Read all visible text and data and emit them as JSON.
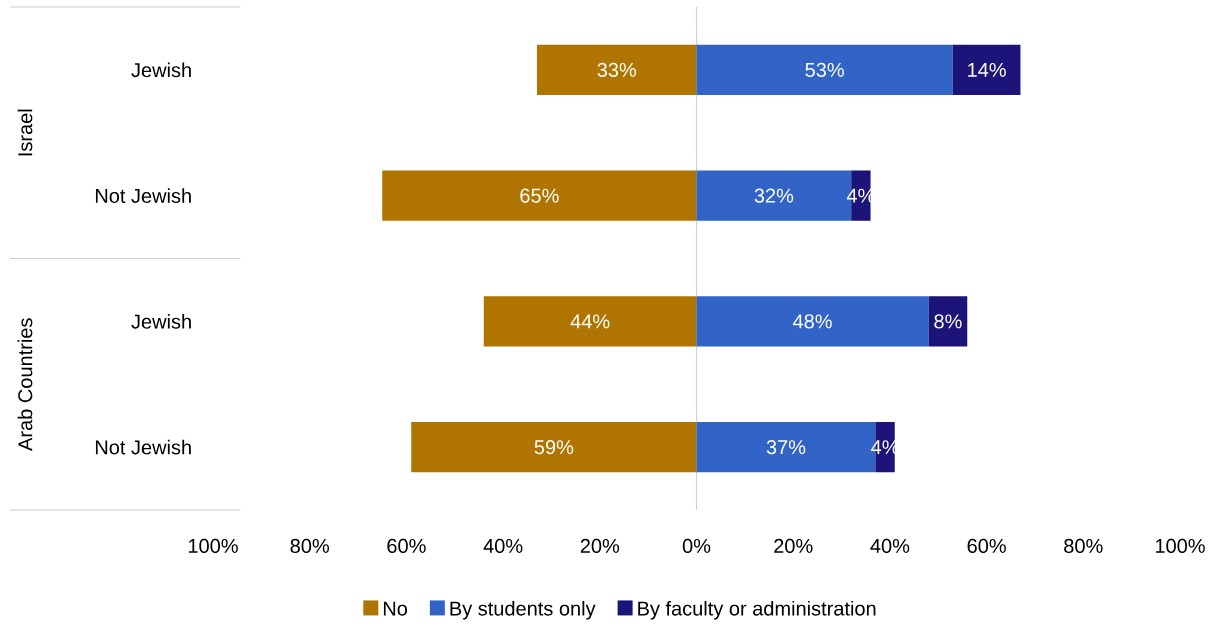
{
  "chart_data": {
    "type": "bar",
    "orientation": "horizontal",
    "categories": [
      "Jewish",
      "Not Jewish",
      "Jewish",
      "Not Jewish"
    ],
    "series": [
      {
        "name": "No",
        "color": "#b07500",
        "values": [
          33,
          65,
          44,
          59
        ],
        "base": [
          -33,
          -65,
          -44,
          -59
        ],
        "value_labels": [
          "33%",
          "65%",
          "44%",
          "59%"
        ]
      },
      {
        "name": "By students only",
        "color": "#3264c8",
        "values": [
          53,
          32,
          48,
          37
        ],
        "base": [
          0,
          0,
          0,
          0
        ],
        "value_labels": [
          "53%",
          "32%",
          "48%",
          "37%"
        ]
      },
      {
        "name": "By faculty or administration",
        "color": "#1c1478",
        "values": [
          14,
          4,
          8,
          4
        ],
        "base": [
          53,
          32,
          48,
          37
        ],
        "value_labels": [
          "14%",
          "4%",
          "8%",
          "4%"
        ]
      }
    ],
    "xlim": [
      -100,
      100
    ],
    "xticks": [
      {
        "value": -100,
        "label": "100%"
      },
      {
        "value": -80,
        "label": "80%"
      },
      {
        "value": -60,
        "label": "60%"
      },
      {
        "value": -40,
        "label": "40%"
      },
      {
        "value": -20,
        "label": "20%"
      },
      {
        "value": 0,
        "label": "0%"
      },
      {
        "value": 20,
        "label": "20%"
      },
      {
        "value": 40,
        "label": "40%"
      },
      {
        "value": 60,
        "label": "60%"
      },
      {
        "value": 80,
        "label": "80%"
      },
      {
        "value": 100,
        "label": "100%"
      }
    ],
    "annotations": [
      "Israel",
      "Arab Countries"
    ],
    "ref_lines": [
      {
        "axis": "x",
        "value": 0,
        "color": "#d0d0d0"
      }
    ],
    "legend": "bottom"
  }
}
